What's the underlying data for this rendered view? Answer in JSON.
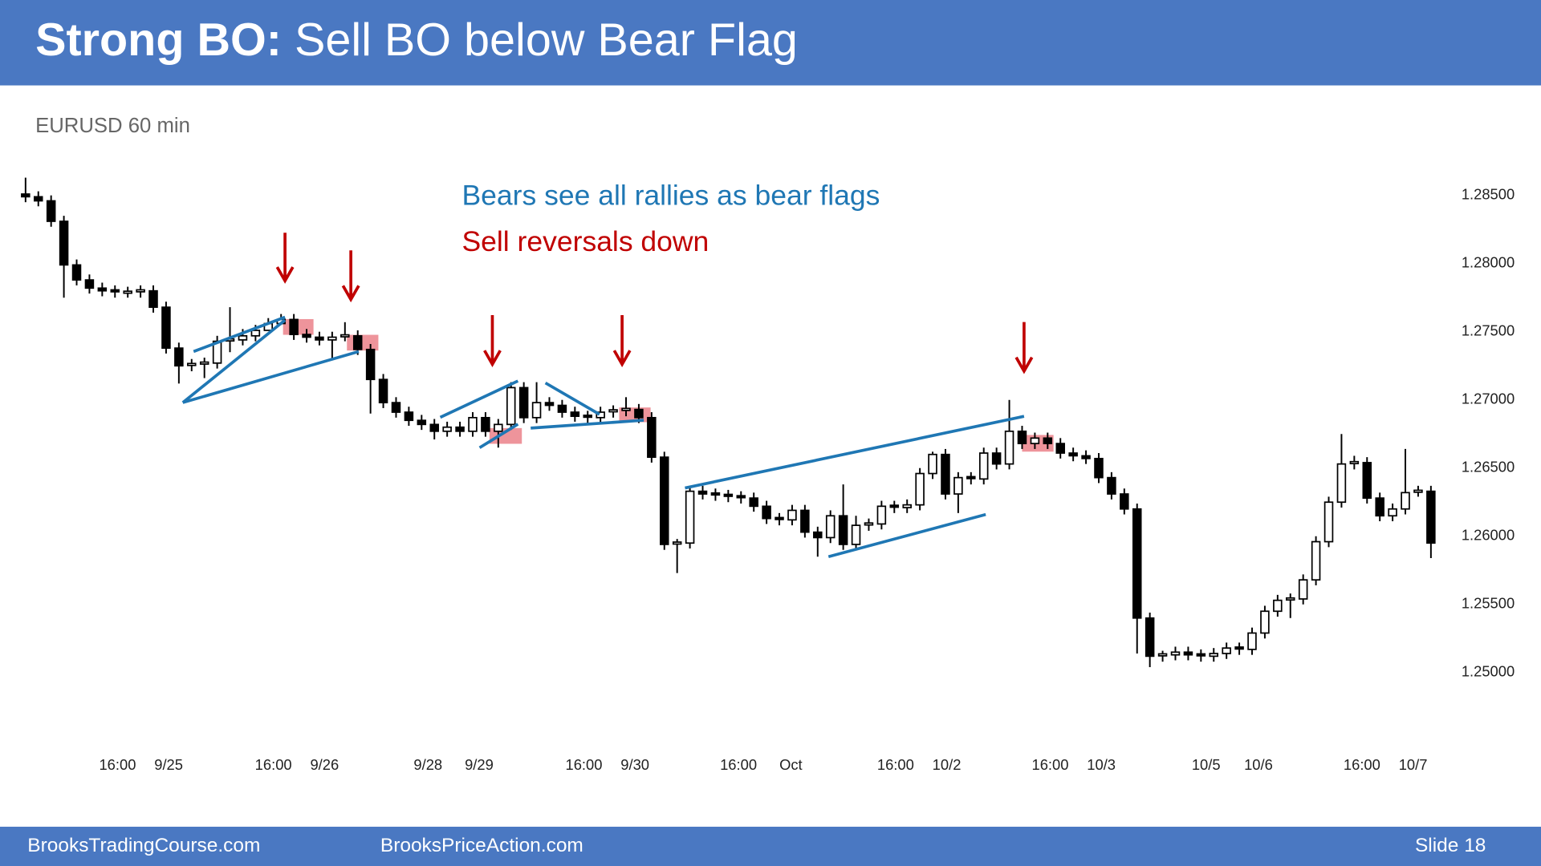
{
  "slide": {
    "title_lead": "Strong BO:",
    "title": "Sell BO below Bear Flag",
    "footer_left": "BrooksTradingCourse.com",
    "footer_center": "BrooksPriceAction.com",
    "slide_number": "Slide  18"
  },
  "chart_data": {
    "type": "candlestick",
    "subtitle": "EURUSD 60 min",
    "annotations": [
      {
        "text": "Bears see all rallies as bear flags",
        "color": "#1f77b4"
      },
      {
        "text": "Sell reversals down",
        "color": "#c00000"
      }
    ],
    "bull_color": "#ffffff",
    "bear_color": "#000000",
    "open": [
      1.2851,
      1.2849,
      1.2846,
      1.2831,
      1.2799,
      1.2788,
      1.2782,
      1.278,
      1.2779,
      1.2779,
      1.278,
      1.2768,
      1.2738,
      1.2725,
      1.2726,
      1.2727,
      1.2743,
      1.2744,
      1.2747,
      1.2751,
      1.2756,
      1.2759,
      1.2748,
      1.2746,
      1.2744,
      1.2746,
      1.2747,
      1.2737,
      1.2715,
      1.2698,
      1.2691,
      1.2685,
      1.2682,
      1.2677,
      1.268,
      1.2677,
      1.2687,
      1.2677,
      1.2682,
      1.2709,
      1.2687,
      1.2698,
      1.2696,
      1.2691,
      1.2688,
      1.2687,
      1.2691,
      1.2692,
      1.2693,
      1.2687,
      1.2658,
      1.2594,
      1.2595,
      1.2633,
      1.2631,
      1.263,
      1.2629,
      1.2628,
      1.2622,
      1.2613,
      1.2612,
      1.2619,
      1.2603,
      1.2599,
      1.2615,
      1.2594,
      1.2608,
      1.2609,
      1.2622,
      1.2621,
      1.2623,
      1.2646,
      1.266,
      1.2631,
      1.2643,
      1.2642,
      1.2661,
      1.2653,
      1.2677,
      1.2668,
      1.2672,
      1.2668,
      1.2661,
      1.2659,
      1.2657,
      1.2643,
      1.2631,
      1.262,
      1.254,
      1.2512,
      1.2513,
      1.2515,
      1.2513,
      1.2512,
      1.2514,
      1.2518,
      1.2517,
      1.2529,
      1.2545,
      1.2553,
      1.2554,
      1.2568,
      1.2596,
      1.2625,
      1.2653,
      1.2654,
      1.2628,
      1.2615,
      1.262,
      1.2632,
      1.2633
    ],
    "high": [
      1.2863,
      1.2853,
      1.285,
      1.2835,
      1.2803,
      1.2792,
      1.2786,
      1.2784,
      1.2783,
      1.2784,
      1.2784,
      1.2772,
      1.2742,
      1.273,
      1.2731,
      1.2747,
      1.2768,
      1.2752,
      1.2755,
      1.276,
      1.2763,
      1.2763,
      1.2752,
      1.275,
      1.275,
      1.2757,
      1.2751,
      1.2741,
      1.2719,
      1.2702,
      1.2695,
      1.2689,
      1.2686,
      1.2684,
      1.2684,
      1.2691,
      1.2691,
      1.2686,
      1.2713,
      1.2713,
      1.2713,
      1.2702,
      1.27,
      1.2695,
      1.2692,
      1.2695,
      1.2696,
      1.2702,
      1.2697,
      1.2691,
      1.2662,
      1.2598,
      1.2637,
      1.2637,
      1.2635,
      1.2634,
      1.2633,
      1.2632,
      1.2626,
      1.2617,
      1.2623,
      1.2623,
      1.2607,
      1.2619,
      1.2638,
      1.2615,
      1.2613,
      1.2626,
      1.2626,
      1.2627,
      1.265,
      1.2662,
      1.2664,
      1.2647,
      1.2647,
      1.2665,
      1.2665,
      1.27,
      1.2681,
      1.2676,
      1.2676,
      1.2672,
      1.2665,
      1.2663,
      1.2661,
      1.2647,
      1.2635,
      1.2624,
      1.2544,
      1.2516,
      1.2519,
      1.2519,
      1.2517,
      1.2518,
      1.2522,
      1.2522,
      1.2533,
      1.2549,
      1.2557,
      1.2558,
      1.2572,
      1.26,
      1.2629,
      1.2675,
      1.2659,
      1.2658,
      1.2632,
      1.2624,
      1.2664,
      1.2637,
      1.2637
    ],
    "low": [
      1.2845,
      1.2842,
      1.2827,
      1.2775,
      1.2784,
      1.2778,
      1.2776,
      1.2775,
      1.2775,
      1.2775,
      1.2764,
      1.2734,
      1.2712,
      1.2721,
      1.2716,
      1.2723,
      1.2735,
      1.274,
      1.2743,
      1.2752,
      1.2755,
      1.2744,
      1.2742,
      1.274,
      1.273,
      1.2743,
      1.2733,
      1.269,
      1.2694,
      1.2687,
      1.2681,
      1.2678,
      1.2671,
      1.2673,
      1.2673,
      1.2673,
      1.2673,
      1.2665,
      1.2678,
      1.2683,
      1.2683,
      1.2692,
      1.2687,
      1.2684,
      1.2683,
      1.2683,
      1.2687,
      1.2688,
      1.2683,
      1.2654,
      1.259,
      1.2573,
      1.2591,
      1.2627,
      1.2626,
      1.2625,
      1.2624,
      1.2618,
      1.2609,
      1.2608,
      1.2608,
      1.2599,
      1.2585,
      1.2595,
      1.259,
      1.259,
      1.2604,
      1.2605,
      1.2617,
      1.2617,
      1.2619,
      1.2642,
      1.2627,
      1.2617,
      1.2638,
      1.2638,
      1.2649,
      1.2649,
      1.2664,
      1.2664,
      1.2664,
      1.2657,
      1.2655,
      1.2653,
      1.2639,
      1.2627,
      1.2616,
      1.2514,
      1.2504,
      1.2508,
      1.2509,
      1.2509,
      1.2508,
      1.2508,
      1.251,
      1.2513,
      1.2513,
      1.2525,
      1.2541,
      1.254,
      1.255,
      1.2564,
      1.2592,
      1.2621,
      1.2649,
      1.2624,
      1.2611,
      1.2611,
      1.2616,
      1.2629,
      1.2584
    ],
    "close": [
      1.2849,
      1.2846,
      1.2831,
      1.2799,
      1.2788,
      1.2782,
      1.278,
      1.2779,
      1.2779,
      1.278,
      1.2768,
      1.2738,
      1.2725,
      1.2726,
      1.2727,
      1.2743,
      1.2744,
      1.2747,
      1.2751,
      1.2756,
      1.2759,
      1.2748,
      1.2746,
      1.2744,
      1.2746,
      1.2747,
      1.2737,
      1.2715,
      1.2698,
      1.2691,
      1.2685,
      1.2682,
      1.2677,
      1.268,
      1.2677,
      1.2687,
      1.2677,
      1.2682,
      1.2709,
      1.2687,
      1.2698,
      1.2696,
      1.2691,
      1.2688,
      1.2687,
      1.2691,
      1.2692,
      1.2693,
      1.2687,
      1.2658,
      1.2594,
      1.2595,
      1.2633,
      1.2631,
      1.263,
      1.2629,
      1.2628,
      1.2622,
      1.2613,
      1.2612,
      1.2619,
      1.2603,
      1.2599,
      1.2615,
      1.2594,
      1.2608,
      1.2609,
      1.2622,
      1.2621,
      1.2623,
      1.2646,
      1.266,
      1.2631,
      1.2643,
      1.2642,
      1.2661,
      1.2653,
      1.2677,
      1.2668,
      1.2672,
      1.2668,
      1.2661,
      1.2659,
      1.2657,
      1.2643,
      1.2631,
      1.262,
      1.254,
      1.2512,
      1.2513,
      1.2515,
      1.2513,
      1.2512,
      1.2514,
      1.2518,
      1.2517,
      1.2529,
      1.2545,
      1.2553,
      1.2554,
      1.2568,
      1.2596,
      1.2625,
      1.2653,
      1.2654,
      1.2628,
      1.2615,
      1.262,
      1.2632,
      1.2633,
      1.2595
    ],
    "xlim": [
      -2,
      112
    ],
    "xticks": [
      {
        "value": 7.2,
        "label": "16:00"
      },
      {
        "value": 11.2,
        "label": "9/25"
      },
      {
        "value": 19.4,
        "label": "16:00"
      },
      {
        "value": 23.4,
        "label": "9/26"
      },
      {
        "value": 31.5,
        "label": "9/28"
      },
      {
        "value": 35.5,
        "label": "9/29"
      },
      {
        "value": 43.7,
        "label": "16:00"
      },
      {
        "value": 47.7,
        "label": "9/30"
      },
      {
        "value": 55.8,
        "label": "16:00"
      },
      {
        "value": 59.9,
        "label": "Oct"
      },
      {
        "value": 68.1,
        "label": "16:00"
      },
      {
        "value": 72.1,
        "label": "10/2"
      },
      {
        "value": 80.2,
        "label": "16:00"
      },
      {
        "value": 84.2,
        "label": "10/3"
      },
      {
        "value": 92.4,
        "label": "10/5"
      },
      {
        "value": 96.5,
        "label": "10/6"
      },
      {
        "value": 104.6,
        "label": "16:00"
      },
      {
        "value": 108.6,
        "label": "10/7"
      }
    ],
    "ylim": [
      1.2475,
      1.287
    ],
    "yticks": [
      {
        "value": 1.25,
        "label": "1.25000"
      },
      {
        "value": 1.255,
        "label": "1.25500"
      },
      {
        "value": 1.26,
        "label": "1.26000"
      },
      {
        "value": 1.265,
        "label": "1.26500"
      },
      {
        "value": 1.27,
        "label": "1.27000"
      },
      {
        "value": 1.275,
        "label": "1.27500"
      },
      {
        "value": 1.28,
        "label": "1.28000"
      },
      {
        "value": 1.285,
        "label": "1.28500"
      }
    ],
    "grid": false
  }
}
